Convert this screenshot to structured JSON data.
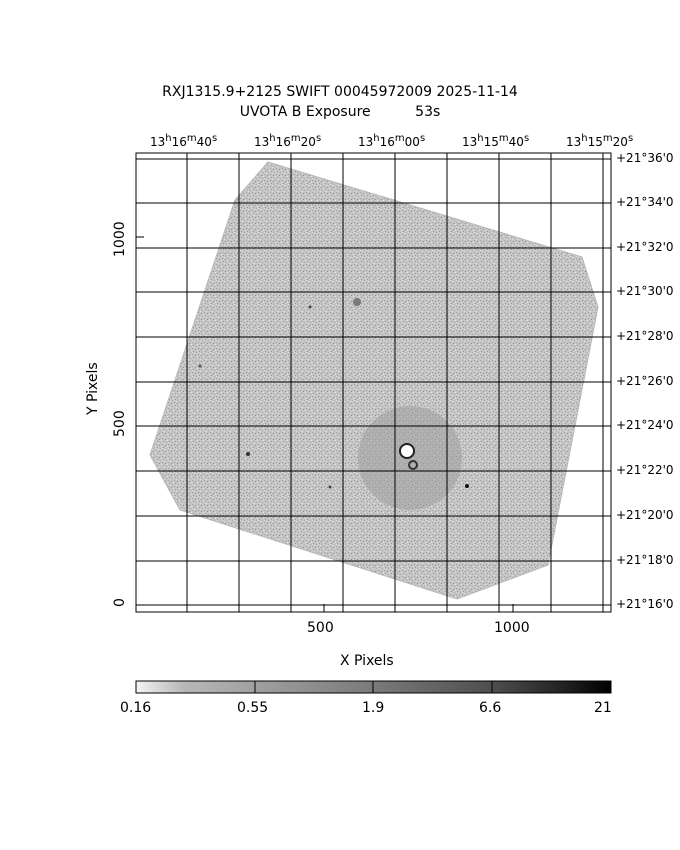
{
  "figure": {
    "title_line1": "RXJ1315.9+2125 SWIFT 00045972009 2025-11-14",
    "title_line2": "UVOTA B Exposure          53s",
    "x_axis_label": "X Pixels",
    "y_axis_label": "Y Pixels",
    "x_ticks": [
      "500",
      "1000"
    ],
    "y_ticks": [
      "0",
      "500",
      "1000"
    ],
    "ra_ticks": [
      {
        "h": "13",
        "m": "16",
        "s": "40"
      },
      {
        "h": "13",
        "m": "16",
        "s": "20"
      },
      {
        "h": "13",
        "m": "16",
        "s": "00"
      },
      {
        "h": "13",
        "m": "15",
        "s": "40"
      },
      {
        "h": "13",
        "m": "15",
        "s": "20"
      }
    ],
    "dec_ticks": [
      "+21°36'0",
      "+21°34'0",
      "+21°32'0",
      "+21°30'0",
      "+21°28'0",
      "+21°26'0",
      "+21°24'0",
      "+21°22'0",
      "+21°20'0",
      "+21°18'0",
      "+21°16'0"
    ],
    "colorbar_ticks": [
      "0.16",
      "0.55",
      "1.9",
      "6.6",
      "21"
    ],
    "colorbar_scale": "log"
  }
}
